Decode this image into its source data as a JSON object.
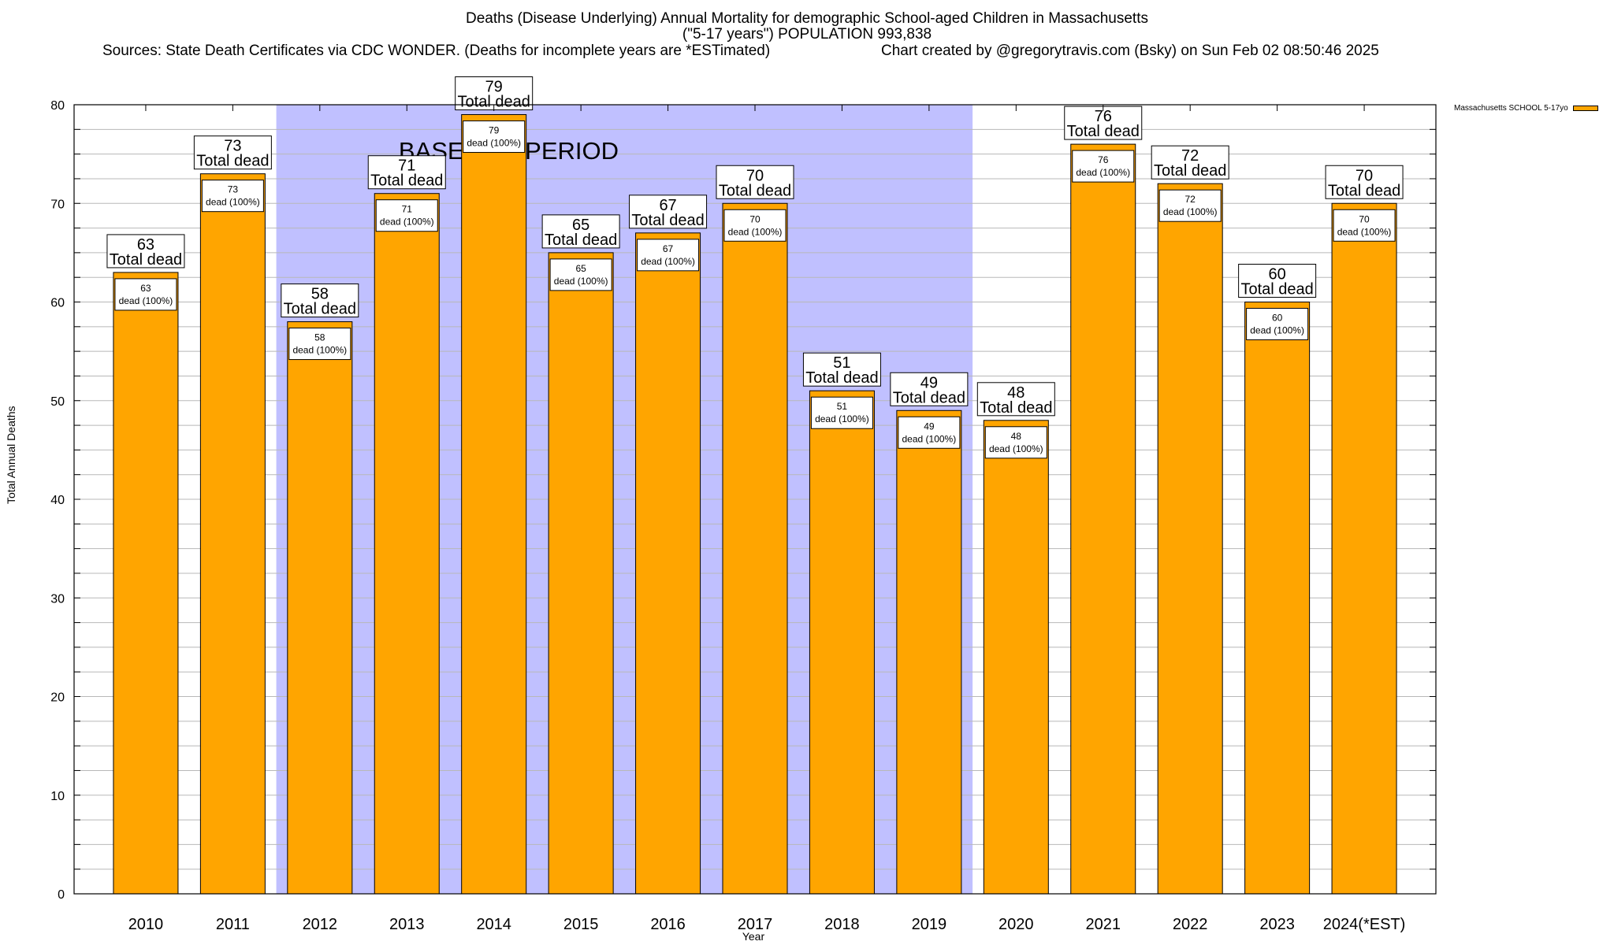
{
  "chart_data": {
    "type": "bar",
    "title": "Deaths (Disease Underlying) Annual Mortality for demographic School-aged Children in Massachusetts",
    "subtitle": "(\"5-17 years\") POPULATION 993,838",
    "source_note": "Sources: State Death Certificates via CDC WONDER. (Deaths for incomplete years are *ESTimated)",
    "credit": "Chart created by @gregorytravis.com (Bsky) on Sun Feb 02 08:50:46 2025",
    "xlabel": "Year",
    "ylabel": "Total Annual Deaths",
    "ylim": [
      0,
      80
    ],
    "yticks": [
      0,
      10,
      20,
      30,
      40,
      50,
      60,
      70,
      80
    ],
    "minor_grid_step": 2.5,
    "grid": true,
    "categories": [
      "2010",
      "2011",
      "2012",
      "2013",
      "2014",
      "2015",
      "2016",
      "2017",
      "2018",
      "2019",
      "2020",
      "2021",
      "2022",
      "2023",
      "2024(*EST)"
    ],
    "series": [
      {
        "name": "Massachusetts SCHOOL 5-17yo",
        "color": "#FFA500",
        "values": [
          63,
          73,
          58,
          71,
          79,
          65,
          67,
          70,
          51,
          49,
          48,
          76,
          72,
          60,
          70
        ]
      }
    ],
    "total_label_suffix": "Total dead",
    "inner_label_suffix": "dead (100%)",
    "annotation": {
      "text": "BASELINE PERIOD",
      "range_from_category": "2012",
      "range_to_category": "2019",
      "color": "#C0C0FF"
    },
    "legend": {
      "position": "top-right",
      "entries": [
        "Massachusetts SCHOOL 5-17yo"
      ]
    }
  }
}
